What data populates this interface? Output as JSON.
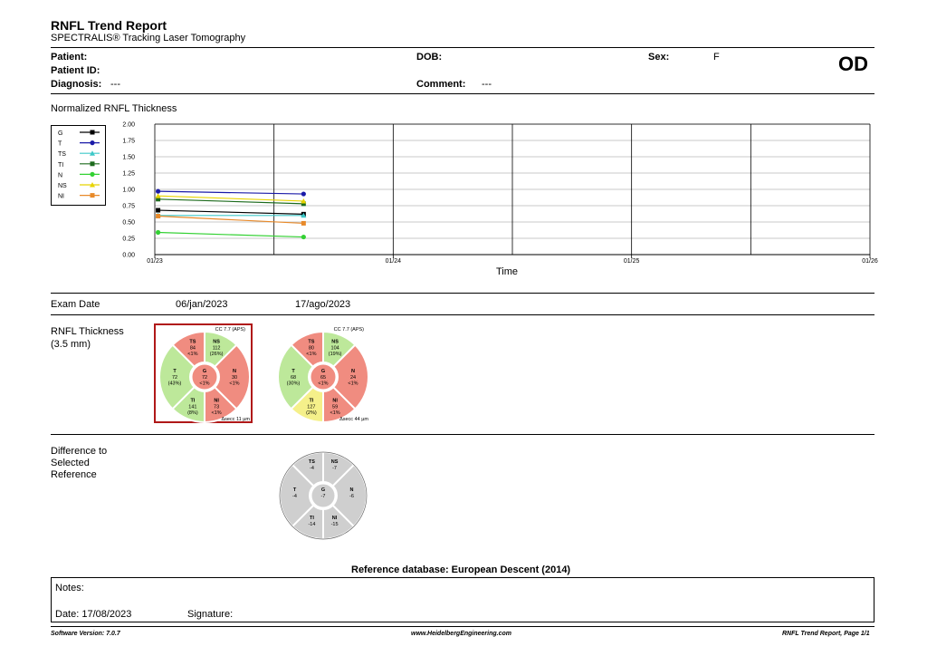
{
  "header": {
    "title": "RNFL Trend Report",
    "subtitle": "SPECTRALIS® Tracking Laser Tomography",
    "eye": "OD"
  },
  "patient": {
    "patient_label": "Patient:",
    "patient_value": "",
    "id_label": "Patient ID:",
    "id_value": "",
    "diagnosis_label": "Diagnosis:",
    "diagnosis_value": "---",
    "dob_label": "DOB:",
    "dob_value": "",
    "comment_label": "Comment:",
    "comment_value": "---",
    "sex_label": "Sex:",
    "sex_value": "F"
  },
  "chart_data": {
    "type": "line",
    "title": "Normalized RNFL Thickness",
    "xlabel": "Time",
    "x_ticks": [
      "01/23",
      "01/24",
      "01/25",
      "01/26"
    ],
    "ylim": [
      0,
      2
    ],
    "y_ticks": [
      "0.00",
      "0.25",
      "0.50",
      "0.75",
      "1.00",
      "1.25",
      "1.50",
      "1.75",
      "2.00"
    ],
    "grid": true,
    "legend_position": "top-left",
    "x_dates": [
      "2023-01-06",
      "2023-08-17"
    ],
    "series": [
      {
        "name": "G",
        "color": "#000000",
        "marker": "square",
        "values": [
          0.68,
          0.62
        ]
      },
      {
        "name": "T",
        "color": "#1a1aa8",
        "marker": "circle",
        "values": [
          0.97,
          0.93
        ]
      },
      {
        "name": "TS",
        "color": "#3ec8c8",
        "marker": "triangle",
        "values": [
          0.6,
          0.6
        ]
      },
      {
        "name": "TI",
        "color": "#1d6b1d",
        "marker": "square",
        "values": [
          0.85,
          0.78
        ]
      },
      {
        "name": "N",
        "color": "#33d133",
        "marker": "circle",
        "values": [
          0.34,
          0.27
        ]
      },
      {
        "name": "NS",
        "color": "#e8d400",
        "marker": "triangle",
        "values": [
          0.9,
          0.82
        ]
      },
      {
        "name": "NI",
        "color": "#e88a2a",
        "marker": "square",
        "values": [
          0.59,
          0.48
        ]
      }
    ]
  },
  "exam": {
    "label": "Exam Date",
    "dates": [
      "06/jan/2023",
      "17/ago/2023"
    ]
  },
  "thickness": {
    "label_line1": "RNFL Thickness",
    "label_line2": "(3.5 mm)",
    "circles": [
      {
        "cc": "CC 7.7 (APS)",
        "diff": "Δsecc 11 µm",
        "selected": true,
        "TS": {
          "v": "84",
          "p": "<1%",
          "c": "#f08c80"
        },
        "NS": {
          "v": "112",
          "p": "(26%)",
          "c": "#bde89a"
        },
        "T": {
          "v": "72",
          "p": "(43%)",
          "c": "#bde89a"
        },
        "G": {
          "v": "72",
          "p": "<1%",
          "c": "#f08c80"
        },
        "N": {
          "v": "30",
          "p": "<1%",
          "c": "#f08c80"
        },
        "TI": {
          "v": "141",
          "p": "(8%)",
          "c": "#bde89a"
        },
        "NI": {
          "v": "73",
          "p": "<1%",
          "c": "#f08c80"
        }
      },
      {
        "cc": "CC 7.7 (APS)",
        "diff": "Δsecc 44 µm",
        "selected": false,
        "TS": {
          "v": "80",
          "p": "<1%",
          "c": "#f08c80"
        },
        "NS": {
          "v": "104",
          "p": "(19%)",
          "c": "#bde89a"
        },
        "T": {
          "v": "68",
          "p": "(30%)",
          "c": "#bde89a"
        },
        "G": {
          "v": "65",
          "p": "<1%",
          "c": "#f08c80"
        },
        "N": {
          "v": "24",
          "p": "<1%",
          "c": "#f08c80"
        },
        "TI": {
          "v": "127",
          "p": "(2%)",
          "c": "#f5f08a"
        },
        "NI": {
          "v": "59",
          "p": "<1%",
          "c": "#f08c80"
        }
      }
    ]
  },
  "difference": {
    "label_line1": "Difference to",
    "label_line2": "Selected",
    "label_line3": "Reference",
    "TS": "-4",
    "NS": "-7",
    "T": "-4",
    "G": "-7",
    "N": "-6",
    "TI": "-14",
    "NI": "-15"
  },
  "reference_db": "Reference database: European Descent (2014)",
  "notes": {
    "notes_label": "Notes:",
    "date_label": "Date: 17/08/2023",
    "signature_label": "Signature:"
  },
  "footer": {
    "left": "Software Version: 7.0.7",
    "center": "www.HeidelbergEngineering.com",
    "right": "RNFL Trend Report, Page 1/1"
  }
}
